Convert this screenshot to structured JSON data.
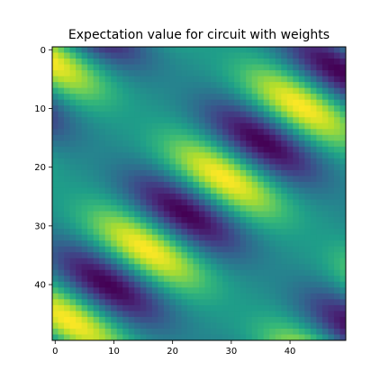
{
  "chart_data": {
    "type": "heatmap",
    "title": "Expectation value for circuit with weights",
    "xlabel": "",
    "ylabel": "",
    "grid": false,
    "colormap": "viridis",
    "colormap_stops": [
      "#440154",
      "#482878",
      "#3e4989",
      "#31688e",
      "#26828e",
      "#1f9e89",
      "#35b779",
      "#6ece58",
      "#b5de2b",
      "#fde725"
    ],
    "shape": [
      50,
      50
    ],
    "x_range": [
      0,
      49
    ],
    "y_range": [
      0,
      49
    ],
    "y_axis_inverted": true,
    "x_ticks": [
      0,
      10,
      20,
      30,
      40
    ],
    "y_ticks": [
      0,
      10,
      20,
      30,
      40
    ],
    "field_model": "0.5 + 0.5*cos(0.2*(x - 1.5*y) + 0.8)*(0.55 + 0.45*cos(0.13*y + 0.12*x))",
    "approx_values": {
      "bright_center": {
        "x": 23,
        "y": 26,
        "value": 1.0
      },
      "dark_center_upper": {
        "x": 26,
        "y": 11,
        "value": 0.0
      },
      "dark_center_lower": {
        "x": 20,
        "y": 41,
        "value": 0.05
      },
      "bright_top": {
        "x": 22,
        "y": 2,
        "value": 0.85
      },
      "bright_bottom": {
        "x": 24,
        "y": 47,
        "value": 0.85
      }
    }
  }
}
